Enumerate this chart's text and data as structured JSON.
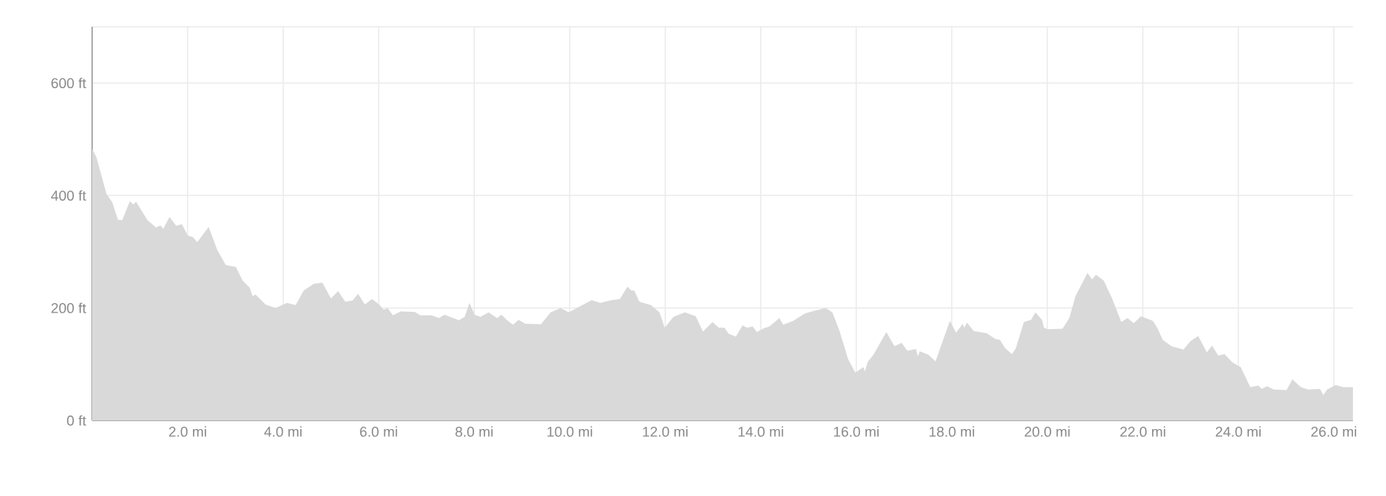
{
  "chart_data": {
    "type": "area",
    "color": "#d9d9d9",
    "grid": true,
    "xlim": [
      0,
      26.4
    ],
    "ylim": [
      0,
      700
    ],
    "xticks": [
      {
        "value": 0,
        "label": null
      },
      {
        "value": 2,
        "label": "2.0 mi"
      },
      {
        "value": 4,
        "label": "4.0 mi"
      },
      {
        "value": 6,
        "label": "6.0 mi"
      },
      {
        "value": 8,
        "label": "8.0 mi"
      },
      {
        "value": 10,
        "label": "10.0 mi"
      },
      {
        "value": 12,
        "label": "12.0 mi"
      },
      {
        "value": 14,
        "label": "14.0 mi"
      },
      {
        "value": 16,
        "label": "16.0 mi"
      },
      {
        "value": 18,
        "label": "18.0 mi"
      },
      {
        "value": 20,
        "label": "20.0 mi"
      },
      {
        "value": 22,
        "label": "22.0 mi"
      },
      {
        "value": 24,
        "label": "24.0 mi"
      },
      {
        "value": 26,
        "label": "26.0 mi"
      }
    ],
    "yticks": [
      {
        "value": 0,
        "label": "0 ft"
      },
      {
        "value": 200,
        "label": "200 ft"
      },
      {
        "value": 400,
        "label": "400 ft"
      },
      {
        "value": 600,
        "label": "600 ft"
      },
      {
        "value": 700,
        "label": null
      }
    ],
    "x": [
      0,
      0.09,
      0.3,
      0.42,
      0.54,
      0.63,
      0.79,
      0.86,
      0.92,
      1.16,
      1.34,
      1.43,
      1.49,
      1.62,
      1.76,
      1.88,
      2.0,
      2.11,
      2.2,
      2.44,
      2.62,
      2.8,
      3.01,
      3.15,
      3.3,
      3.36,
      3.42,
      3.63,
      3.84,
      4.08,
      4.26,
      4.43,
      4.64,
      4.82,
      5.0,
      5.15,
      5.3,
      5.45,
      5.57,
      5.71,
      5.86,
      6.01,
      6.1,
      6.19,
      6.3,
      6.46,
      6.76,
      6.87,
      7.11,
      7.26,
      7.38,
      7.68,
      7.8,
      7.9,
      8.01,
      8.13,
      8.3,
      8.48,
      8.57,
      8.69,
      8.81,
      8.93,
      9.07,
      9.4,
      9.6,
      9.81,
      9.98,
      10.17,
      10.46,
      10.64,
      10.87,
      11.05,
      11.21,
      11.29,
      11.35,
      11.46,
      11.7,
      11.88,
      11.99,
      12.17,
      12.41,
      12.64,
      12.79,
      12.99,
      13.12,
      13.24,
      13.33,
      13.48,
      13.62,
      13.71,
      13.83,
      13.92,
      14.07,
      14.18,
      14.39,
      14.47,
      14.68,
      14.92,
      15.12,
      15.36,
      15.5,
      15.65,
      15.83,
      15.98,
      16.15,
      16.18,
      16.24,
      16.36,
      16.63,
      16.8,
      16.95,
      17.07,
      17.25,
      17.29,
      17.33,
      17.51,
      17.66,
      17.96,
      18.09,
      18.23,
      18.26,
      18.32,
      18.46,
      18.73,
      18.91,
      19.01,
      19.12,
      19.26,
      19.34,
      19.51,
      19.66,
      19.75,
      19.89,
      19.93,
      20.01,
      20.32,
      20.46,
      20.59,
      20.84,
      20.94,
      21.02,
      21.18,
      21.35,
      21.55,
      21.68,
      21.81,
      21.96,
      22.21,
      22.3,
      22.42,
      22.6,
      22.85,
      23.0,
      23.16,
      23.34,
      23.45,
      23.58,
      23.71,
      23.88,
      24.05,
      24.25,
      24.42,
      24.49,
      24.6,
      24.74,
      25.01,
      25.13,
      25.31,
      25.46,
      25.71,
      25.78,
      25.86,
      26.04,
      26.2,
      26.4
    ],
    "values": [
      483,
      468,
      403,
      388,
      357,
      356,
      390,
      384,
      389,
      356,
      343,
      347,
      341,
      362,
      346,
      349,
      329,
      326,
      317,
      344,
      303,
      276,
      273,
      249,
      236,
      221,
      224,
      206,
      200,
      209,
      205,
      231,
      243,
      245,
      217,
      230,
      211,
      213,
      225,
      206,
      216,
      206,
      197,
      199,
      187,
      194,
      193,
      187,
      187,
      182,
      188,
      178,
      184,
      209,
      188,
      184,
      192,
      182,
      188,
      178,
      170,
      179,
      172,
      171,
      192,
      200,
      192,
      201,
      214,
      209,
      214,
      216,
      238,
      231,
      231,
      211,
      205,
      192,
      165,
      184,
      192,
      185,
      158,
      175,
      165,
      165,
      154,
      149,
      169,
      165,
      167,
      157,
      164,
      167,
      182,
      170,
      177,
      190,
      195,
      200,
      192,
      159,
      109,
      85,
      95,
      87,
      104,
      117,
      157,
      132,
      138,
      124,
      127,
      114,
      123,
      117,
      105,
      177,
      156,
      172,
      165,
      174,
      159,
      155,
      145,
      143,
      128,
      118,
      128,
      175,
      179,
      192,
      179,
      165,
      162,
      163,
      182,
      221,
      262,
      251,
      259,
      249,
      218,
      175,
      182,
      173,
      185,
      177,
      165,
      143,
      132,
      126,
      141,
      150,
      121,
      133,
      115,
      118,
      103,
      95,
      59,
      62,
      56,
      61,
      55,
      54,
      73,
      59,
      55,
      56,
      45,
      55,
      63,
      59,
      59
    ]
  }
}
